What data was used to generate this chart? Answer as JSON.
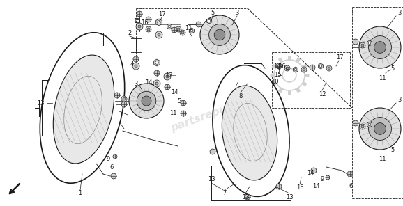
{
  "bg_color": "#ffffff",
  "line_color": "#1a1a1a",
  "fig_width": 5.78,
  "fig_height": 2.96,
  "dpi": 100
}
